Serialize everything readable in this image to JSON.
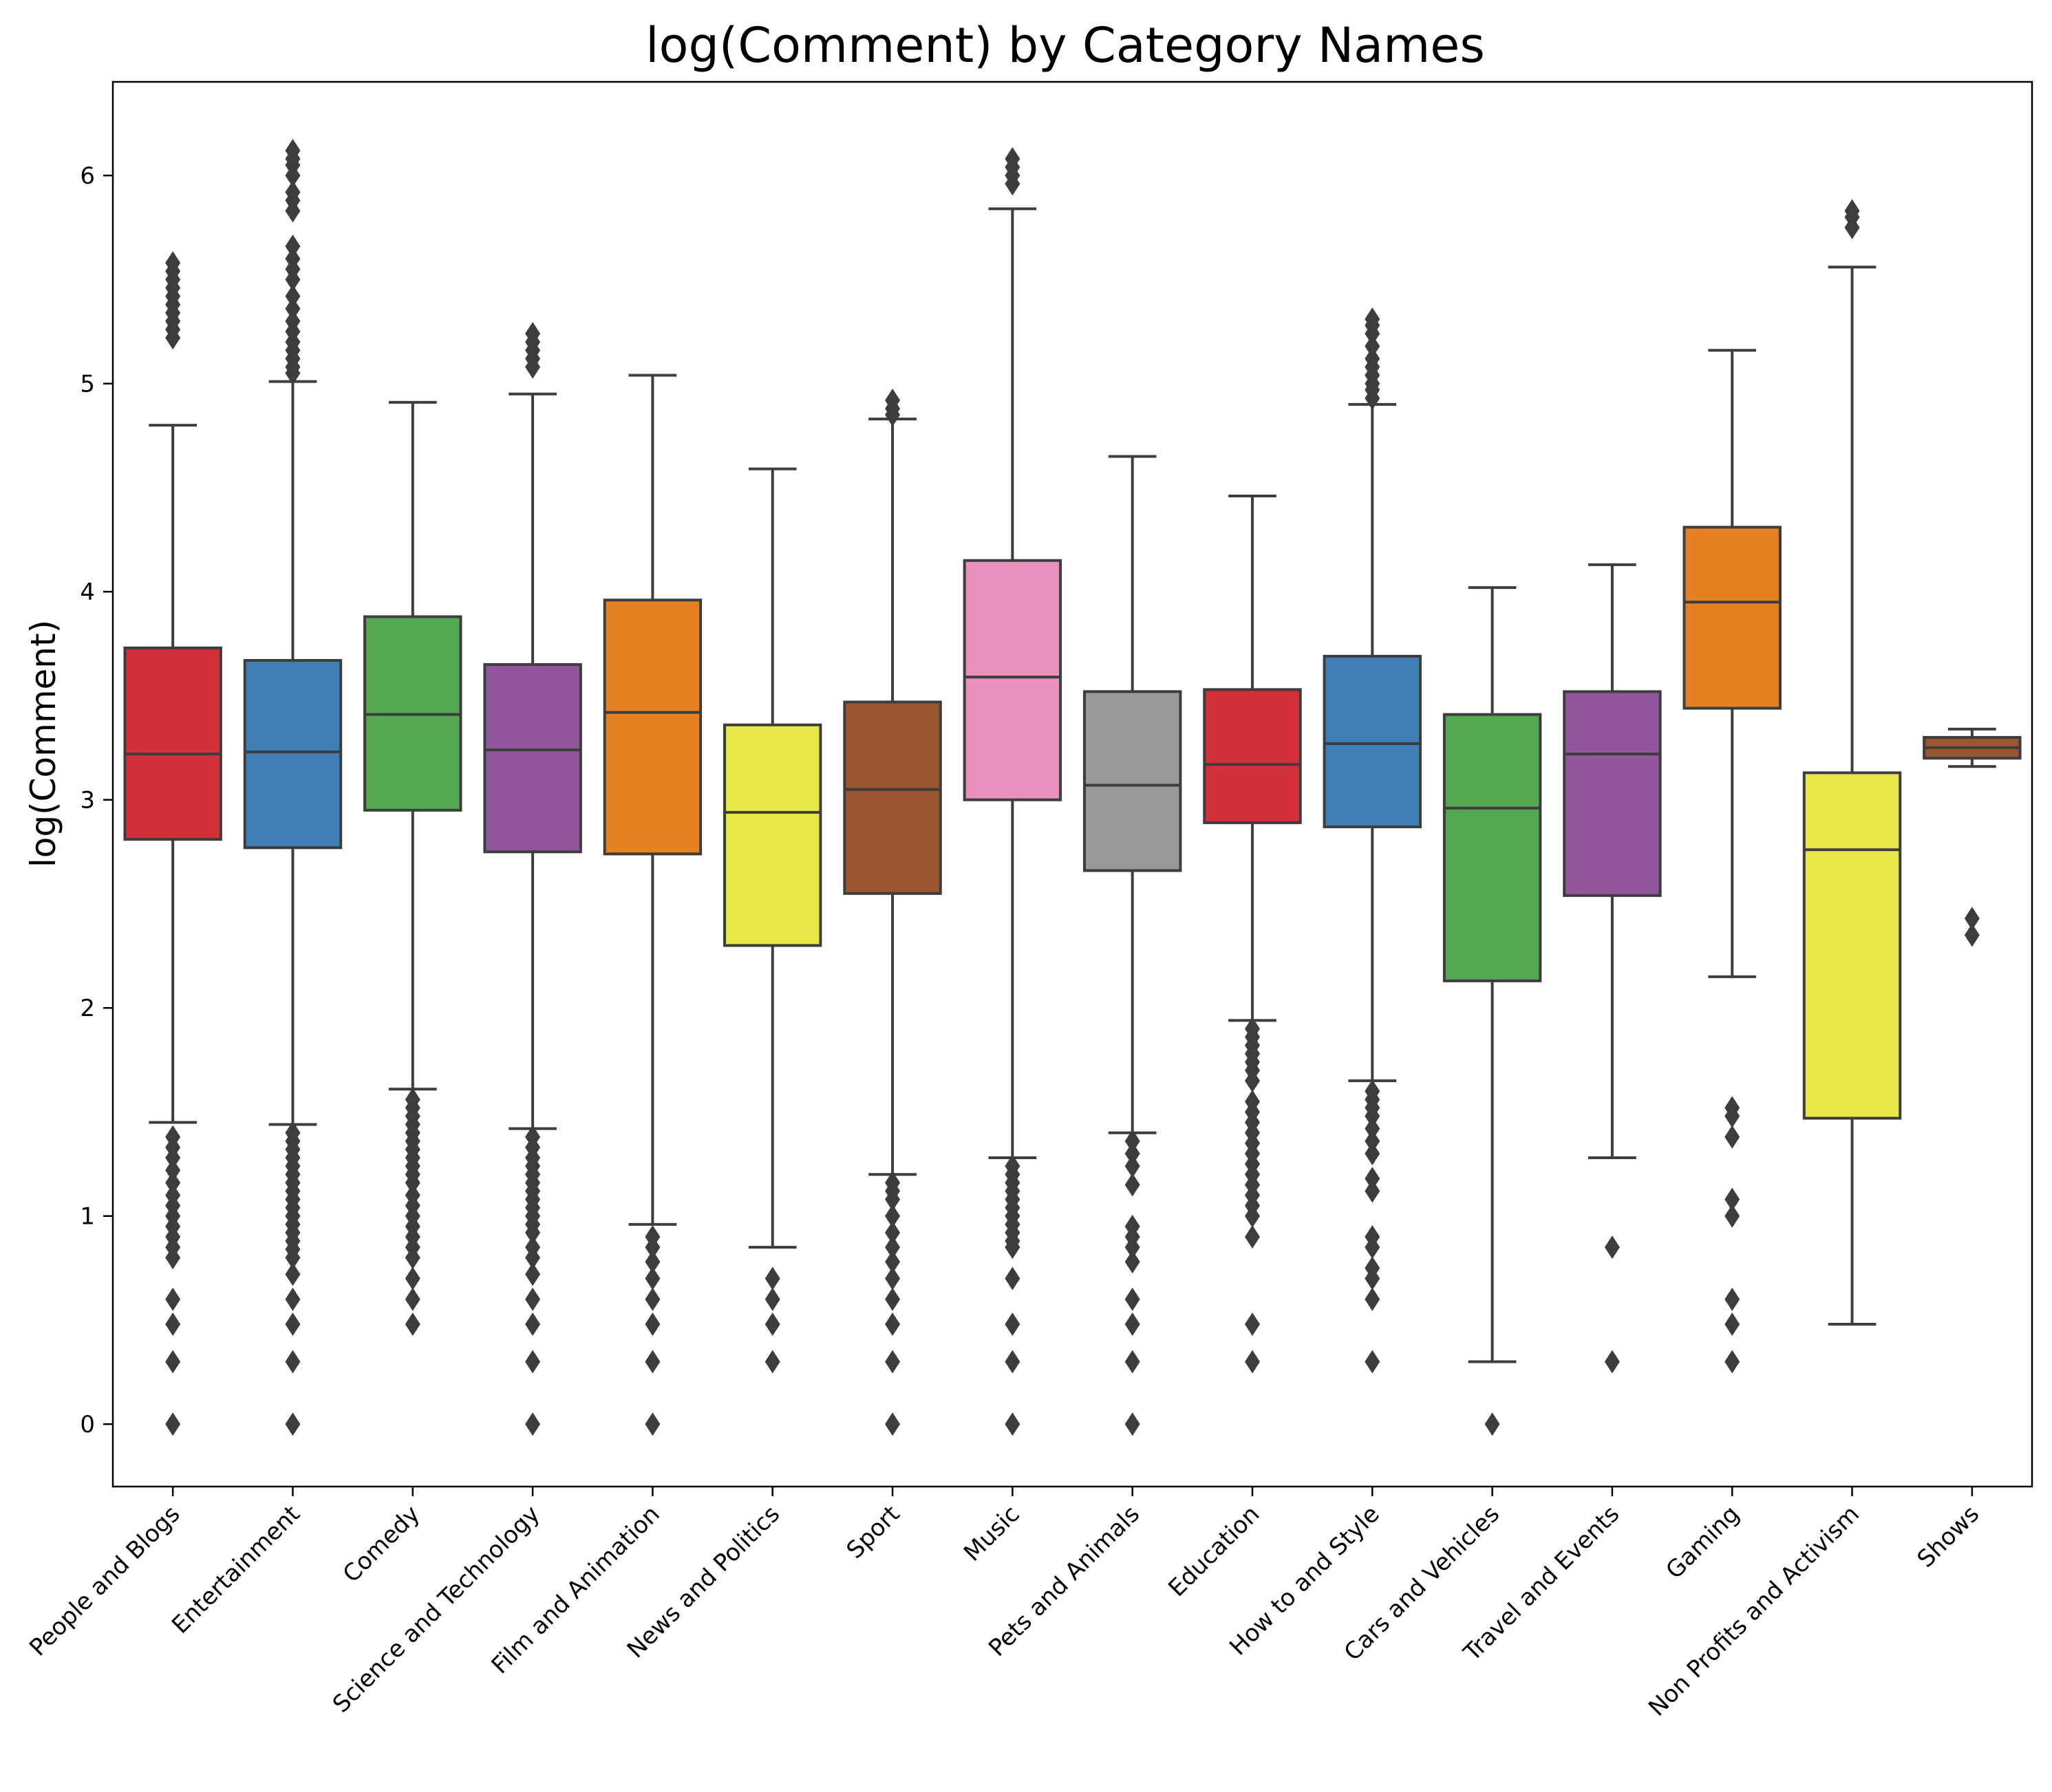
{
  "chart_data": {
    "type": "box",
    "title": "log(Comment) by Category Names",
    "xlabel": "",
    "ylabel": "log(Comment)",
    "ylim": [
      -0.3,
      6.45
    ],
    "yticks": [
      "0",
      "1",
      "2",
      "3",
      "4",
      "5",
      "6"
    ],
    "grid": false,
    "categories": [
      "People and Blogs",
      "Entertainment",
      "Comedy",
      "Science and Technology",
      "Film and Animation",
      "News and Politics",
      "Sport",
      "Music",
      "Pets and Animals",
      "Education",
      "How to and Style",
      "Cars and Vehicles",
      "Travel and Events",
      "Gaming",
      "Non Profits and Activism",
      "Shows"
    ],
    "colors": [
      "#d3303a",
      "#407fb6",
      "#55a852",
      "#91569b",
      "#e38123",
      "#e8e749",
      "#9a5630",
      "#e990bc",
      "#999999",
      "#d3303a",
      "#407fb6",
      "#55a852",
      "#91569b",
      "#e38123",
      "#e8e749",
      "#9a5630"
    ],
    "boxes": [
      {
        "whislo": 1.45,
        "q1": 2.81,
        "med": 3.22,
        "q3": 3.73,
        "whishi": 4.8,
        "fliers": [
          5.22,
          5.26,
          5.3,
          5.34,
          5.38,
          5.42,
          5.46,
          5.5,
          5.54,
          5.58,
          1.38,
          1.33,
          1.28,
          1.22,
          1.16,
          1.1,
          1.05,
          1.0,
          0.95,
          0.9,
          0.85,
          0.8,
          0.6,
          0.48,
          0.3,
          0.0
        ]
      },
      {
        "whislo": 1.44,
        "q1": 2.77,
        "med": 3.23,
        "q3": 3.67,
        "whishi": 5.01,
        "fliers": [
          5.05,
          5.08,
          5.12,
          5.16,
          5.2,
          5.25,
          5.3,
          5.36,
          5.42,
          5.5,
          5.55,
          5.6,
          5.66,
          5.83,
          5.88,
          5.92,
          6.0,
          6.05,
          6.08,
          6.12,
          1.4,
          1.36,
          1.32,
          1.28,
          1.24,
          1.2,
          1.16,
          1.12,
          1.08,
          1.04,
          1.0,
          0.96,
          0.92,
          0.88,
          0.84,
          0.8,
          0.72,
          0.6,
          0.48,
          0.3,
          0.0
        ]
      },
      {
        "whislo": 1.61,
        "q1": 2.95,
        "med": 3.41,
        "q3": 3.88,
        "whishi": 4.91,
        "fliers": [
          1.56,
          1.52,
          1.48,
          1.44,
          1.4,
          1.36,
          1.32,
          1.28,
          1.24,
          1.2,
          1.16,
          1.1,
          1.05,
          1.0,
          0.95,
          0.9,
          0.85,
          0.8,
          0.7,
          0.6,
          0.48
        ]
      },
      {
        "whislo": 1.42,
        "q1": 2.75,
        "med": 3.24,
        "q3": 3.65,
        "whishi": 4.95,
        "fliers": [
          5.08,
          5.12,
          5.16,
          5.2,
          5.24,
          1.38,
          1.33,
          1.28,
          1.24,
          1.2,
          1.16,
          1.12,
          1.08,
          1.04,
          1.0,
          0.96,
          0.92,
          0.85,
          0.8,
          0.72,
          0.6,
          0.48,
          0.3,
          0.0
        ]
      },
      {
        "whislo": 0.96,
        "q1": 2.74,
        "med": 3.42,
        "q3": 3.96,
        "whishi": 5.04,
        "fliers": [
          0.9,
          0.85,
          0.78,
          0.7,
          0.6,
          0.48,
          0.3,
          0.0
        ]
      },
      {
        "whislo": 0.85,
        "q1": 2.3,
        "med": 2.94,
        "q3": 3.36,
        "whishi": 4.59,
        "fliers": [
          0.7,
          0.6,
          0.48,
          0.3
        ]
      },
      {
        "whislo": 1.2,
        "q1": 2.55,
        "med": 3.05,
        "q3": 3.47,
        "whishi": 4.83,
        "fliers": [
          4.85,
          4.88,
          4.92,
          1.16,
          1.12,
          1.08,
          1.0,
          0.92,
          0.85,
          0.78,
          0.7,
          0.6,
          0.48,
          0.3,
          0.0
        ]
      },
      {
        "whislo": 1.28,
        "q1": 3.0,
        "med": 3.59,
        "q3": 4.15,
        "whishi": 5.84,
        "fliers": [
          5.96,
          6.0,
          6.04,
          6.08,
          1.24,
          1.2,
          1.16,
          1.12,
          1.08,
          1.04,
          1.0,
          0.96,
          0.92,
          0.88,
          0.85,
          0.7,
          0.48,
          0.3,
          0.0
        ]
      },
      {
        "whislo": 1.4,
        "q1": 2.66,
        "med": 3.07,
        "q3": 3.52,
        "whishi": 4.65,
        "fliers": [
          1.36,
          1.3,
          1.24,
          1.15,
          0.95,
          0.9,
          0.85,
          0.78,
          0.6,
          0.48,
          0.3,
          0.0
        ]
      },
      {
        "whislo": 1.94,
        "q1": 2.89,
        "med": 3.17,
        "q3": 3.53,
        "whishi": 4.46,
        "fliers": [
          1.9,
          1.86,
          1.82,
          1.78,
          1.74,
          1.7,
          1.65,
          1.55,
          1.5,
          1.45,
          1.4,
          1.35,
          1.3,
          1.25,
          1.2,
          1.15,
          1.1,
          1.05,
          1.0,
          0.9,
          0.48,
          0.3
        ]
      },
      {
        "whislo": 1.65,
        "q1": 2.87,
        "med": 3.27,
        "q3": 3.69,
        "whishi": 4.9,
        "fliers": [
          4.93,
          4.97,
          5.0,
          5.04,
          5.08,
          5.12,
          5.18,
          5.24,
          5.28,
          5.31,
          1.6,
          1.56,
          1.52,
          1.48,
          1.42,
          1.36,
          1.3,
          1.18,
          1.12,
          0.9,
          0.85,
          0.75,
          0.7,
          0.6,
          0.3
        ]
      },
      {
        "whislo": 0.3,
        "q1": 2.13,
        "med": 2.96,
        "q3": 3.41,
        "whishi": 4.02,
        "fliers": [
          0.0
        ]
      },
      {
        "whislo": 1.28,
        "q1": 2.54,
        "med": 3.22,
        "q3": 3.52,
        "whishi": 4.13,
        "fliers": [
          0.85,
          0.3
        ]
      },
      {
        "whislo": 2.15,
        "q1": 3.44,
        "med": 3.95,
        "q3": 4.31,
        "whishi": 5.16,
        "fliers": [
          1.52,
          1.48,
          1.38,
          1.08,
          1.0,
          0.6,
          0.48,
          0.3
        ]
      },
      {
        "whislo": 0.48,
        "q1": 1.47,
        "med": 2.76,
        "q3": 3.13,
        "whishi": 5.56,
        "fliers": [
          5.75,
          5.8,
          5.83
        ]
      },
      {
        "whislo": 3.16,
        "q1": 3.2,
        "med": 3.25,
        "q3": 3.3,
        "whishi": 3.34,
        "fliers": [
          2.43,
          2.35
        ]
      }
    ]
  }
}
